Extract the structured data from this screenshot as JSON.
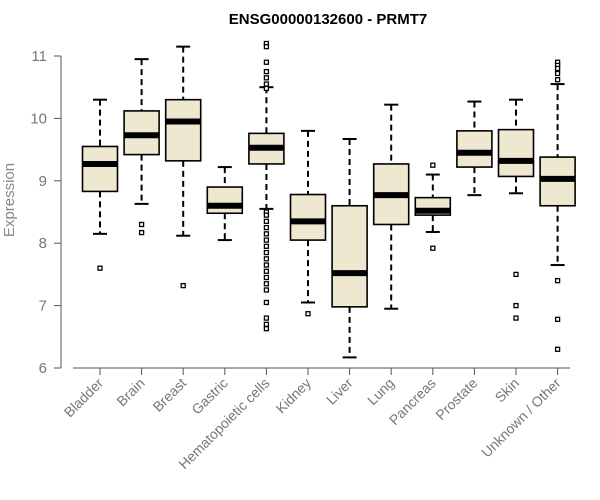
{
  "chart_data": {
    "type": "boxplot",
    "title": "ENSG00000132600 - PRMT7",
    "xlabel": "",
    "ylabel": "Expression",
    "ylim": [
      6,
      11
    ],
    "yticks": [
      6,
      7,
      8,
      9,
      10,
      11
    ],
    "box_color": "#efe8d0",
    "series": [
      {
        "name": "Bladder",
        "q1": 8.83,
        "median": 9.27,
        "q3": 9.55,
        "whisker_low": 8.15,
        "whisker_high": 10.3,
        "outliers": [
          7.6
        ]
      },
      {
        "name": "Brain",
        "q1": 9.42,
        "median": 9.73,
        "q3": 10.12,
        "whisker_low": 8.63,
        "whisker_high": 10.95,
        "outliers": [
          8.3,
          8.17
        ]
      },
      {
        "name": "Breast",
        "q1": 9.32,
        "median": 9.95,
        "q3": 10.3,
        "whisker_low": 8.12,
        "whisker_high": 11.15,
        "outliers": [
          7.32
        ]
      },
      {
        "name": "Gastric",
        "q1": 8.48,
        "median": 8.6,
        "q3": 8.9,
        "whisker_low": 8.05,
        "whisker_high": 9.22,
        "outliers": []
      },
      {
        "name": "Hematopoietic cells",
        "q1": 9.27,
        "median": 9.53,
        "q3": 9.76,
        "whisker_low": 8.55,
        "whisker_high": 10.5,
        "outliers": [
          11.2,
          11.15,
          10.9,
          10.75,
          10.65,
          10.55,
          10.48,
          8.5,
          8.45,
          8.35,
          8.25,
          8.15,
          8.05,
          7.95,
          7.85,
          7.75,
          7.65,
          7.55,
          7.45,
          7.35,
          7.25,
          7.05,
          6.8,
          6.7,
          6.63
        ]
      },
      {
        "name": "Kidney",
        "q1": 8.05,
        "median": 8.35,
        "q3": 8.78,
        "whisker_low": 7.05,
        "whisker_high": 9.8,
        "outliers": [
          6.87
        ]
      },
      {
        "name": "Liver",
        "q1": 6.98,
        "median": 7.52,
        "q3": 8.6,
        "whisker_low": 6.17,
        "whisker_high": 9.67,
        "outliers": []
      },
      {
        "name": "Lung",
        "q1": 8.3,
        "median": 8.77,
        "q3": 9.27,
        "whisker_low": 6.95,
        "whisker_high": 10.22,
        "outliers": []
      },
      {
        "name": "Pancreas",
        "q1": 8.45,
        "median": 8.52,
        "q3": 8.73,
        "whisker_low": 8.18,
        "whisker_high": 9.1,
        "outliers": [
          9.25,
          7.92
        ]
      },
      {
        "name": "Prostate",
        "q1": 9.22,
        "median": 9.45,
        "q3": 9.8,
        "whisker_low": 8.77,
        "whisker_high": 10.27,
        "outliers": []
      },
      {
        "name": "Skin",
        "q1": 9.07,
        "median": 9.32,
        "q3": 9.82,
        "whisker_low": 8.8,
        "whisker_high": 10.3,
        "outliers": [
          7.5,
          7.0,
          6.8
        ]
      },
      {
        "name": "Unknown / Other",
        "q1": 8.6,
        "median": 9.03,
        "q3": 9.38,
        "whisker_low": 7.65,
        "whisker_high": 10.55,
        "outliers": [
          10.9,
          10.85,
          10.8,
          10.72,
          10.62,
          7.4,
          6.78,
          6.3
        ]
      }
    ]
  }
}
